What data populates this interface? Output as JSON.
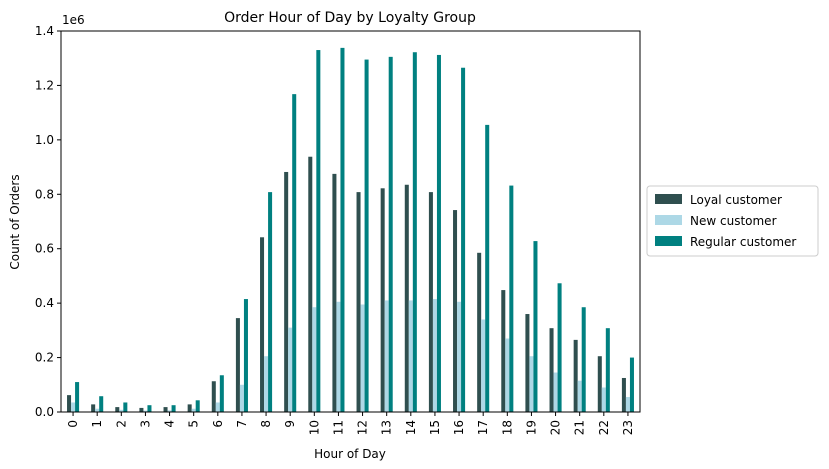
{
  "chart_data": {
    "type": "bar",
    "title": "Order Hour of Day by Loyalty Group",
    "xlabel": "Hour of Day",
    "ylabel": "Count of Orders",
    "y_offset_label": "1e6",
    "ylim": [
      0,
      1.4
    ],
    "yticks": [
      0.0,
      0.2,
      0.4,
      0.6,
      0.8,
      1.0,
      1.2,
      1.4
    ],
    "ytick_labels": [
      "0.0",
      "0.2",
      "0.4",
      "0.6",
      "0.8",
      "1.0",
      "1.2",
      "1.4"
    ],
    "categories": [
      "0",
      "1",
      "2",
      "3",
      "4",
      "5",
      "6",
      "7",
      "8",
      "9",
      "10",
      "11",
      "12",
      "13",
      "14",
      "15",
      "16",
      "17",
      "18",
      "19",
      "20",
      "21",
      "22",
      "23"
    ],
    "series": [
      {
        "name": "Loyal customer",
        "color": "#2f4f4f",
        "values": [
          0.062,
          0.028,
          0.018,
          0.015,
          0.018,
          0.028,
          0.113,
          0.345,
          0.642,
          0.882,
          0.938,
          0.875,
          0.808,
          0.822,
          0.835,
          0.808,
          0.742,
          0.585,
          0.448,
          0.36,
          0.308,
          0.265,
          0.205,
          0.125
        ]
      },
      {
        "name": "New customer",
        "color": "#add8e6",
        "values": [
          0.035,
          0.012,
          0.008,
          0.005,
          0.006,
          0.012,
          0.035,
          0.1,
          0.205,
          0.31,
          0.385,
          0.405,
          0.395,
          0.41,
          0.41,
          0.415,
          0.405,
          0.34,
          0.27,
          0.205,
          0.145,
          0.115,
          0.09,
          0.055
        ]
      },
      {
        "name": "Regular customer",
        "color": "#008080",
        "values": [
          0.11,
          0.058,
          0.035,
          0.025,
          0.025,
          0.043,
          0.135,
          0.415,
          0.808,
          1.168,
          1.33,
          1.338,
          1.295,
          1.305,
          1.322,
          1.312,
          1.265,
          1.055,
          0.832,
          0.628,
          0.473,
          0.385,
          0.308,
          0.2
        ]
      }
    ],
    "legend_position": "center-right",
    "grid": false
  }
}
